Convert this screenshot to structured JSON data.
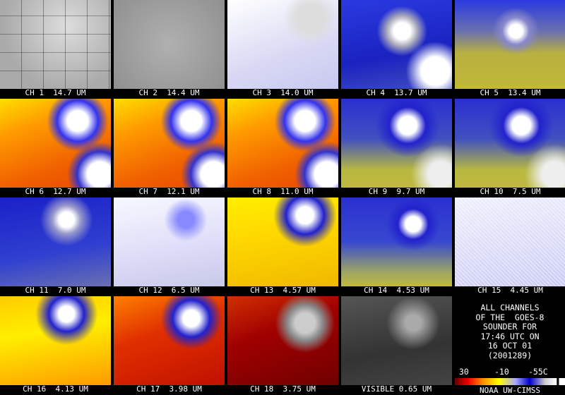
{
  "panels": [
    "CH 1  14.7 UM",
    "CH 2  14.4 UM",
    "CH 3  14.0 UM",
    "CH 4  13.7 UM",
    "CH 5  13.4 UM",
    "CH 6  12.7 UM",
    "CH 7  12.1 UM",
    "CH 8  11.0 UM",
    "CH 9  9.7 UM",
    "CH 10  7.5 UM",
    "CH 11  7.0 UM",
    "CH 12  6.5 UM",
    "CH 13  4.57 UM",
    "CH 14  4.53 UM",
    "CH 15  4.45 UM",
    "CH 16  4.13 UM",
    "CH 17  3.98 UM",
    "CH 18  3.75 UM",
    "VISIBLE 0.65 UM"
  ],
  "info": [
    "ALL CHANNELS",
    "OF THE  GOES-8",
    "SOUNDER FOR",
    "17:46 UTC ON",
    "16 OCT 01",
    "(2001289)"
  ],
  "colorbar_labels": [
    "30",
    "-10",
    "-55C"
  ],
  "credit": "NOAA UW-CIMSS"
}
